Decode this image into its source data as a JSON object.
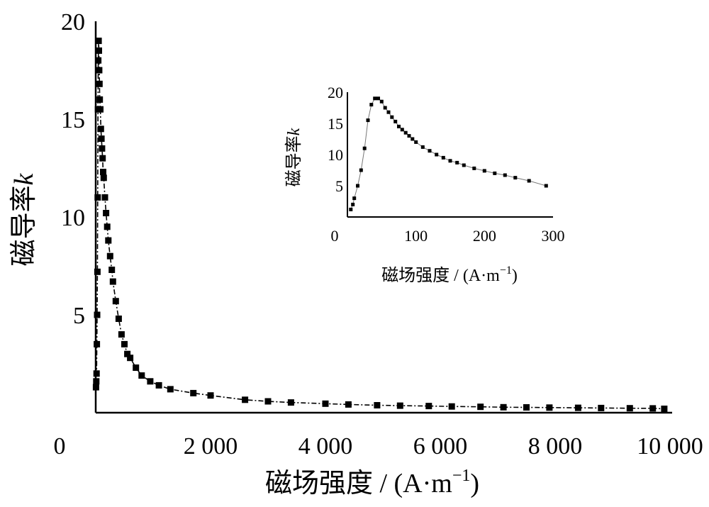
{
  "chart_data": [
    {
      "type": "line",
      "xlabel": "磁场强度 / (A·m",
      "xlabel_sup": "−1",
      "xlabel_end": ")",
      "ylabel": "磁导率",
      "ylabel_italic": "k",
      "xlim": [
        0,
        10000
      ],
      "ylim": [
        0,
        20
      ],
      "x_ticks": [
        {
          "value": 0,
          "label": "0"
        },
        {
          "value": 2000,
          "label": "2 000"
        },
        {
          "value": 4000,
          "label": "4 000"
        },
        {
          "value": 6000,
          "label": "6 000"
        },
        {
          "value": 8000,
          "label": "8 000"
        },
        {
          "value": 10000,
          "label": "10 000"
        }
      ],
      "y_ticks": [
        {
          "value": 5,
          "label": "5"
        },
        {
          "value": 10,
          "label": "10"
        },
        {
          "value": 15,
          "label": "15"
        },
        {
          "value": 20,
          "label": "20"
        }
      ],
      "marker": "square",
      "line_style": "dash-dot",
      "series": [
        {
          "x": [
            5,
            10,
            15,
            20,
            25,
            30,
            35,
            40,
            45,
            50,
            55,
            60,
            65,
            70,
            80,
            90,
            100,
            110,
            120,
            130,
            140,
            160,
            180,
            200,
            220,
            250,
            280,
            300,
            350,
            400,
            450,
            500,
            550,
            600,
            700,
            800,
            950,
            1100,
            1300,
            1700,
            2000,
            2600,
            3000,
            3400,
            4000,
            4400,
            4900,
            5300,
            5800,
            6200,
            6700,
            7100,
            7500,
            7900,
            8400,
            8800,
            9300,
            9700,
            9900
          ],
          "y": [
            1.3,
            1.6,
            2.0,
            3.5,
            5.0,
            7.2,
            11.0,
            15.5,
            18.0,
            19.0,
            18.5,
            17.5,
            16.8,
            16.0,
            15.5,
            14.5,
            14.0,
            13.5,
            13.0,
            12.3,
            12.0,
            11.0,
            10.2,
            9.5,
            8.8,
            8.0,
            7.3,
            6.7,
            5.7,
            4.8,
            4.0,
            3.5,
            3.0,
            2.8,
            2.3,
            1.9,
            1.6,
            1.4,
            1.2,
            1.0,
            0.88,
            0.66,
            0.58,
            0.52,
            0.46,
            0.42,
            0.38,
            0.36,
            0.34,
            0.32,
            0.3,
            0.28,
            0.27,
            0.26,
            0.25,
            0.24,
            0.23,
            0.22,
            0.2
          ]
        }
      ]
    },
    {
      "type": "line",
      "xlabel": "磁场强度 / (A·m",
      "xlabel_sup": "−1",
      "xlabel_end": ")",
      "ylabel": "磁导率",
      "ylabel_italic": "k",
      "xlim": [
        0,
        300
      ],
      "ylim": [
        0,
        20
      ],
      "x_ticks": [
        {
          "value": 0,
          "label": "0"
        },
        {
          "value": 100,
          "label": "100"
        },
        {
          "value": 200,
          "label": "200"
        },
        {
          "value": 300,
          "label": "300"
        }
      ],
      "y_ticks": [
        {
          "value": 5,
          "label": "5"
        },
        {
          "value": 10,
          "label": "10"
        },
        {
          "value": 15,
          "label": "15"
        },
        {
          "value": 20,
          "label": "20"
        }
      ],
      "marker": "square",
      "line_style": "thin",
      "series": [
        {
          "x": [
            5,
            8,
            10,
            15,
            20,
            25,
            30,
            35,
            40,
            45,
            50,
            55,
            60,
            65,
            70,
            75,
            80,
            85,
            90,
            95,
            100,
            110,
            120,
            130,
            140,
            150,
            160,
            170,
            185,
            200,
            215,
            230,
            245,
            265,
            290
          ],
          "y": [
            1.2,
            2.0,
            3.0,
            5.0,
            7.5,
            11.0,
            15.5,
            18.0,
            19.0,
            19.0,
            18.5,
            17.5,
            16.8,
            16.0,
            15.3,
            14.5,
            14.0,
            13.5,
            13.0,
            12.5,
            12.0,
            11.2,
            10.6,
            10.0,
            9.5,
            9.0,
            8.7,
            8.3,
            7.8,
            7.4,
            7.0,
            6.7,
            6.3,
            5.8,
            5.0
          ]
        }
      ]
    }
  ]
}
